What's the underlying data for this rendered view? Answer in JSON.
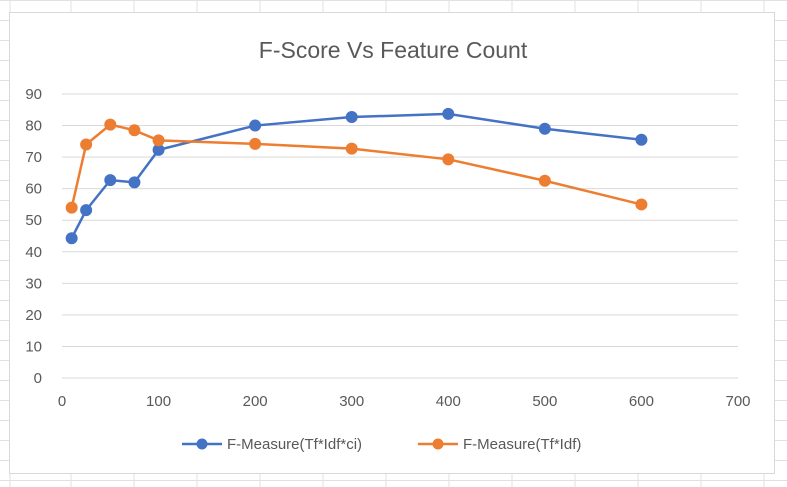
{
  "chart_data": {
    "type": "scatter",
    "title": "F-Score Vs Feature Count",
    "xlabel": "",
    "ylabel": "",
    "xlim": [
      0,
      700
    ],
    "ylim": [
      0,
      90
    ],
    "xticks": [
      0,
      100,
      200,
      300,
      400,
      500,
      600,
      700
    ],
    "yticks": [
      0,
      10,
      20,
      30,
      40,
      50,
      60,
      70,
      80,
      90
    ],
    "x_tick_labels": [
      "0",
      "100",
      "200",
      "300",
      "400",
      "500",
      "600",
      "700"
    ],
    "y_tick_labels": [
      "0",
      "10",
      "20",
      "30",
      "40",
      "50",
      "60",
      "70",
      "80",
      "90"
    ],
    "grid": "horizontal",
    "legend_position": "bottom",
    "series": [
      {
        "name": "F-Measure(Tf*Idf*ci)",
        "color": "#4472C4",
        "points": [
          [
            10,
            44.3
          ],
          [
            25,
            53.2
          ],
          [
            50,
            62.7
          ],
          [
            75,
            62.0
          ],
          [
            100,
            72.3
          ],
          [
            200,
            80.0
          ],
          [
            300,
            82.7
          ],
          [
            400,
            83.7
          ],
          [
            500,
            79.0
          ],
          [
            600,
            75.5
          ]
        ]
      },
      {
        "name": "F-Measure(Tf*Idf)",
        "color": "#ED7D31",
        "points": [
          [
            10,
            54.0
          ],
          [
            25,
            74.0
          ],
          [
            50,
            80.3
          ],
          [
            75,
            78.5
          ],
          [
            100,
            75.3
          ],
          [
            200,
            74.2
          ],
          [
            300,
            72.7
          ],
          [
            400,
            69.3
          ],
          [
            500,
            62.5
          ],
          [
            600,
            55.0
          ]
        ]
      }
    ]
  }
}
